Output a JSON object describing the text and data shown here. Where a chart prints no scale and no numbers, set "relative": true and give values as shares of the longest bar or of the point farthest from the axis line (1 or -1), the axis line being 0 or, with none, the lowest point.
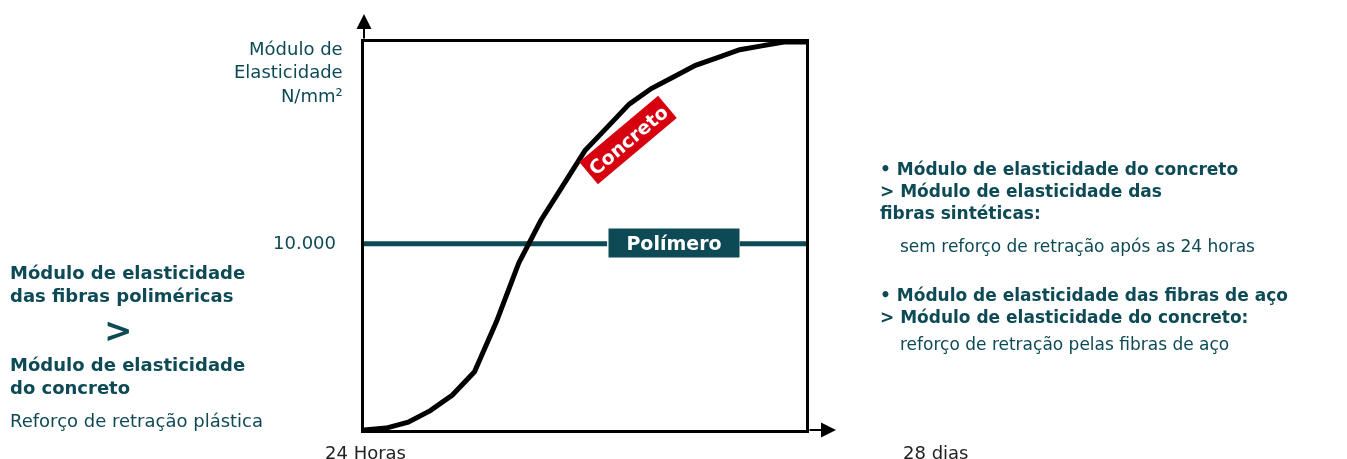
{
  "chart_data": {
    "type": "line",
    "relative": true,
    "ylabel": "Módulo de\nElasticidade\nN/mm²",
    "categories": [
      null,
      null,
      null,
      null,
      null,
      null,
      null,
      null,
      null,
      null,
      null,
      null,
      null,
      null,
      null,
      null,
      null,
      null,
      null,
      null,
      null
    ],
    "series": [
      {
        "name": "Polímero",
        "color": "#0d4a55",
        "values": [
          0.48,
          0.48,
          0.48,
          0.48,
          0.48,
          0.48,
          0.48,
          0.48,
          0.48,
          0.48,
          0.48,
          0.48,
          null,
          null,
          null,
          null,
          null,
          0.48,
          0.48,
          0.48,
          0.48
        ]
      },
      {
        "name": "Concreto",
        "color": "#000000",
        "values": [
          0,
          0.005,
          0.02,
          0.05,
          0.09,
          0.15,
          0.28,
          0.43,
          0.54,
          0.63,
          0.72,
          0.78,
          0.84,
          0.88,
          0.91,
          0.94,
          0.96,
          0.98,
          0.99,
          1.0,
          1
        ]
      }
    ],
    "annotations": [
      "24 Horas",
      "28 dias",
      "Módulo de elasticidade\ndas fibras poliméricas",
      ">",
      "Módulo de elasticidade\ndo concreto",
      "Reforço de retração plástica",
      "• Módulo de elasticidade do concreto\n> Módulo de elasticidade das\nfibras sintéticas:",
      "sem reforço de retração após as 24 horas",
      "• Módulo de elasticidade das fibras de aço\n> Módulo de elasticidade do concreto:",
      "reforço de retração pelas fibras de aço",
      "10.000"
    ]
  }
}
